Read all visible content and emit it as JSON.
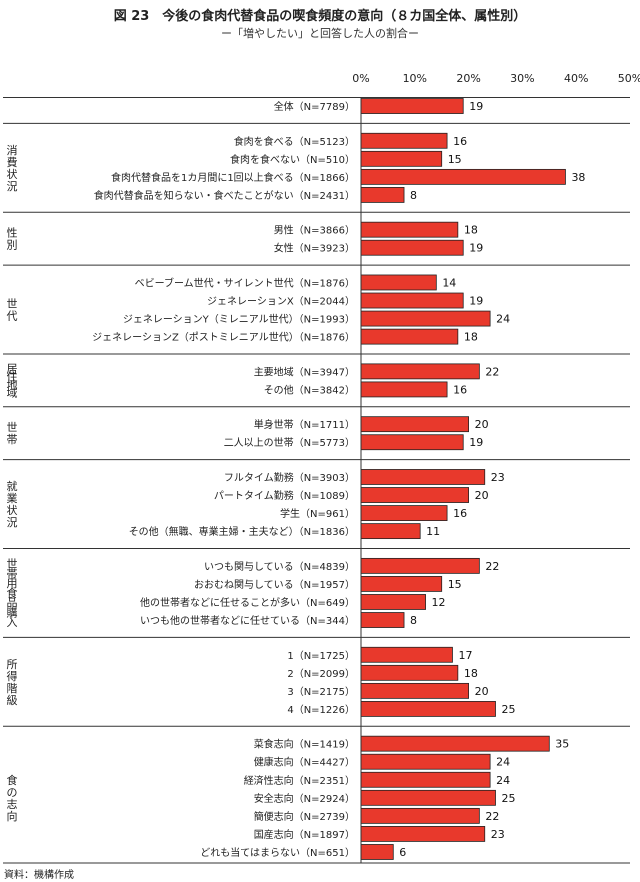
{
  "title": "図 23　今後の食肉代替食品の喫食頻度の意向（８カ国全体、属性別）",
  "subtitle": "ー「増やしたい」と回答した人の割合ー",
  "source": "資料：機構作成",
  "chart_data": {
    "type": "bar",
    "orientation": "horizontal",
    "xlim": [
      0,
      50
    ],
    "xticks": [
      "0%",
      "10%",
      "20%",
      "30%",
      "40%",
      "50%"
    ],
    "bar_color": "#e8392c",
    "groups": [
      {
        "name": "",
        "items": [
          {
            "label": "全体（N=7789）",
            "value": 19
          }
        ]
      },
      {
        "name": "消費状況",
        "items": [
          {
            "label": "食肉を食べる（N=5123）",
            "value": 16
          },
          {
            "label": "食肉を食べない（N=510）",
            "value": 15
          },
          {
            "label": "食肉代替食品を1カ月間に1回以上食べる（N=1866）",
            "value": 38
          },
          {
            "label": "食肉代替食品を知らない・食べたことがない（N=2431）",
            "value": 8
          }
        ]
      },
      {
        "name": "性別",
        "items": [
          {
            "label": "男性（N=3866）",
            "value": 18
          },
          {
            "label": "女性（N=3923）",
            "value": 19
          }
        ]
      },
      {
        "name": "世代",
        "items": [
          {
            "label": "ベビーブーム世代・サイレント世代（N=1876）",
            "value": 14
          },
          {
            "label": "ジェネレーションX（N=2044）",
            "value": 19
          },
          {
            "label": "ジェネレーションY（ミレニアル世代）（N=1993）",
            "value": 24
          },
          {
            "label": "ジェネレーションZ（ポストミレニアル世代）（N=1876）",
            "value": 18
          }
        ]
      },
      {
        "name": "居住地域",
        "items": [
          {
            "label": "主要地域（N=3947）",
            "value": 22
          },
          {
            "label": "その他（N=3842）",
            "value": 16
          }
        ]
      },
      {
        "name": "世帯",
        "items": [
          {
            "label": "単身世帯（N=1711）",
            "value": 20
          },
          {
            "label": "二人以上の世帯（N=5773）",
            "value": 19
          }
        ]
      },
      {
        "name": "就業状況",
        "items": [
          {
            "label": "フルタイム勤務（N=3903）",
            "value": 23
          },
          {
            "label": "パートタイム勤務（N=1089）",
            "value": 20
          },
          {
            "label": "学生（N=961）",
            "value": 16
          },
          {
            "label": "その他（無職、専業主婦・主夫など）（N=1836）",
            "value": 11
          }
        ]
      },
      {
        "name": "世帯用食品購入",
        "items": [
          {
            "label": "いつも関与している（N=4839）",
            "value": 22
          },
          {
            "label": "おおむね関与している（N=1957）",
            "value": 15
          },
          {
            "label": "他の世帯者などに任せることが多い（N=649）",
            "value": 12
          },
          {
            "label": "いつも他の世帯者などに任せている（N=344）",
            "value": 8
          }
        ]
      },
      {
        "name": "所得階級",
        "items": [
          {
            "label": "1（N=1725）",
            "value": 17
          },
          {
            "label": "2（N=2099）",
            "value": 18
          },
          {
            "label": "3（N=2175）",
            "value": 20
          },
          {
            "label": "4（N=1226）",
            "value": 25
          }
        ]
      },
      {
        "name": "食の志向",
        "items": [
          {
            "label": "菜食志向（N=1419）",
            "value": 35
          },
          {
            "label": "健康志向（N=4427）",
            "value": 24
          },
          {
            "label": "経済性志向（N=2351）",
            "value": 24
          },
          {
            "label": "安全志向（N=2924）",
            "value": 25
          },
          {
            "label": "簡便志向（N=2739）",
            "value": 22
          },
          {
            "label": "国産志向（N=1897）",
            "value": 23
          },
          {
            "label": "どれも当てはまらない（N=651）",
            "value": 6
          }
        ]
      }
    ]
  }
}
